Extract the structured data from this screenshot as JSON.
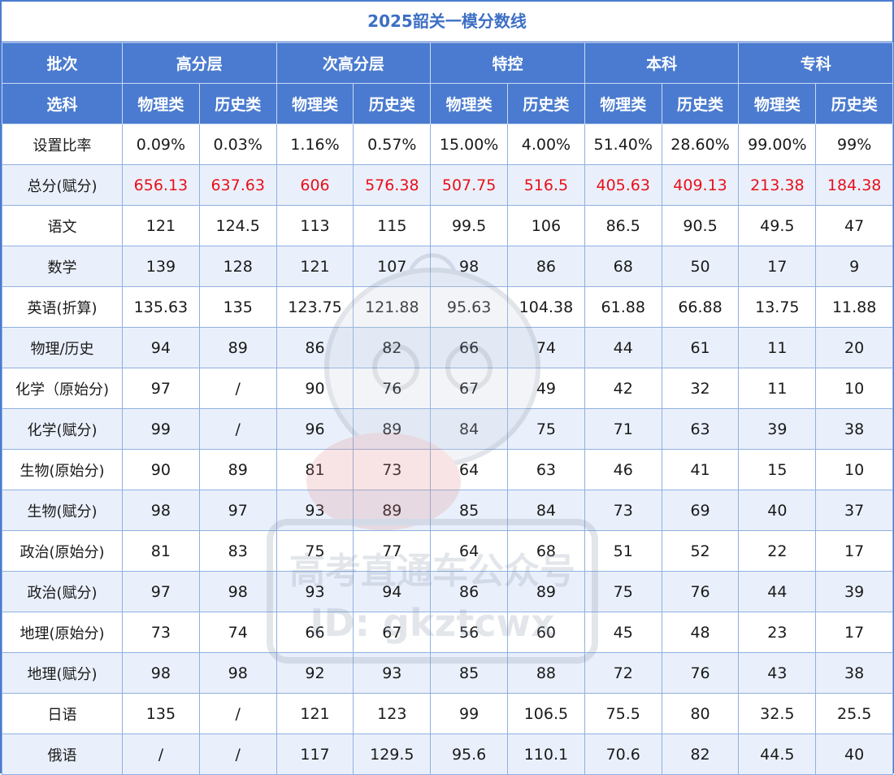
{
  "title": "2025韶关一模分数线",
  "header": {
    "row1_label": "批次",
    "row2_label": "选科",
    "groups": [
      "高分层",
      "次高分层",
      "特控",
      "本科",
      "专科"
    ],
    "subjects": [
      "物理类",
      "历史类"
    ]
  },
  "rows": [
    {
      "label": "设置比率",
      "values": [
        "0.09%",
        "0.03%",
        "1.16%",
        "0.57%",
        "15.00%",
        "4.00%",
        "51.40%",
        "28.60%",
        "99.00%",
        "99%"
      ]
    },
    {
      "label": "总分(赋分)",
      "values": [
        "656.13",
        "637.63",
        "606",
        "576.38",
        "507.75",
        "516.5",
        "405.63",
        "409.13",
        "213.38",
        "184.38"
      ]
    },
    {
      "label": "语文",
      "values": [
        "121",
        "124.5",
        "113",
        "115",
        "99.5",
        "106",
        "86.5",
        "90.5",
        "49.5",
        "47"
      ]
    },
    {
      "label": "数学",
      "values": [
        "139",
        "128",
        "121",
        "107",
        "98",
        "86",
        "68",
        "50",
        "17",
        "9"
      ]
    },
    {
      "label": "英语(折算)",
      "values": [
        "135.63",
        "135",
        "123.75",
        "121.88",
        "95.63",
        "104.38",
        "61.88",
        "66.88",
        "13.75",
        "11.88"
      ]
    },
    {
      "label": "物理/历史",
      "values": [
        "94",
        "89",
        "86",
        "82",
        "66",
        "74",
        "44",
        "61",
        "11",
        "20"
      ]
    },
    {
      "label": "化学（原始分)",
      "values": [
        "97",
        "/",
        "90",
        "76",
        "67",
        "49",
        "42",
        "32",
        "11",
        "10"
      ]
    },
    {
      "label": "化学(赋分)",
      "values": [
        "99",
        "/",
        "96",
        "89",
        "84",
        "75",
        "71",
        "63",
        "39",
        "38"
      ]
    },
    {
      "label": "生物(原始分)",
      "values": [
        "90",
        "89",
        "81",
        "73",
        "64",
        "63",
        "46",
        "41",
        "15",
        "10"
      ]
    },
    {
      "label": "生物(赋分)",
      "values": [
        "98",
        "97",
        "93",
        "89",
        "85",
        "84",
        "73",
        "69",
        "40",
        "37"
      ]
    },
    {
      "label": "政治(原始分)",
      "values": [
        "81",
        "83",
        "75",
        "77",
        "64",
        "68",
        "51",
        "52",
        "22",
        "17"
      ]
    },
    {
      "label": "政治(赋分)",
      "values": [
        "97",
        "98",
        "93",
        "94",
        "86",
        "89",
        "75",
        "76",
        "44",
        "39"
      ]
    },
    {
      "label": "地理(原始分)",
      "values": [
        "73",
        "74",
        "66",
        "67",
        "56",
        "60",
        "45",
        "48",
        "23",
        "17"
      ]
    },
    {
      "label": "地理(赋分)",
      "values": [
        "98",
        "98",
        "92",
        "93",
        "85",
        "88",
        "72",
        "76",
        "43",
        "38"
      ]
    },
    {
      "label": "日语",
      "values": [
        "135",
        "/",
        "121",
        "123",
        "99",
        "106.5",
        "75.5",
        "80",
        "32.5",
        "25.5"
      ]
    },
    {
      "label": "俄语",
      "values": [
        "/",
        "/",
        "117",
        "129.5",
        "95.6",
        "110.1",
        "70.6",
        "82",
        "44.5",
        "40"
      ]
    }
  ],
  "colors": {
    "header_bg": "#4a7bd0",
    "title_text": "#3d6fc4",
    "highlight_text": "#e8101a",
    "stripe": "#eaf0fb"
  },
  "watermark": {
    "line1": "高考直通车公众号",
    "line2": "ID: gkztcwx"
  }
}
